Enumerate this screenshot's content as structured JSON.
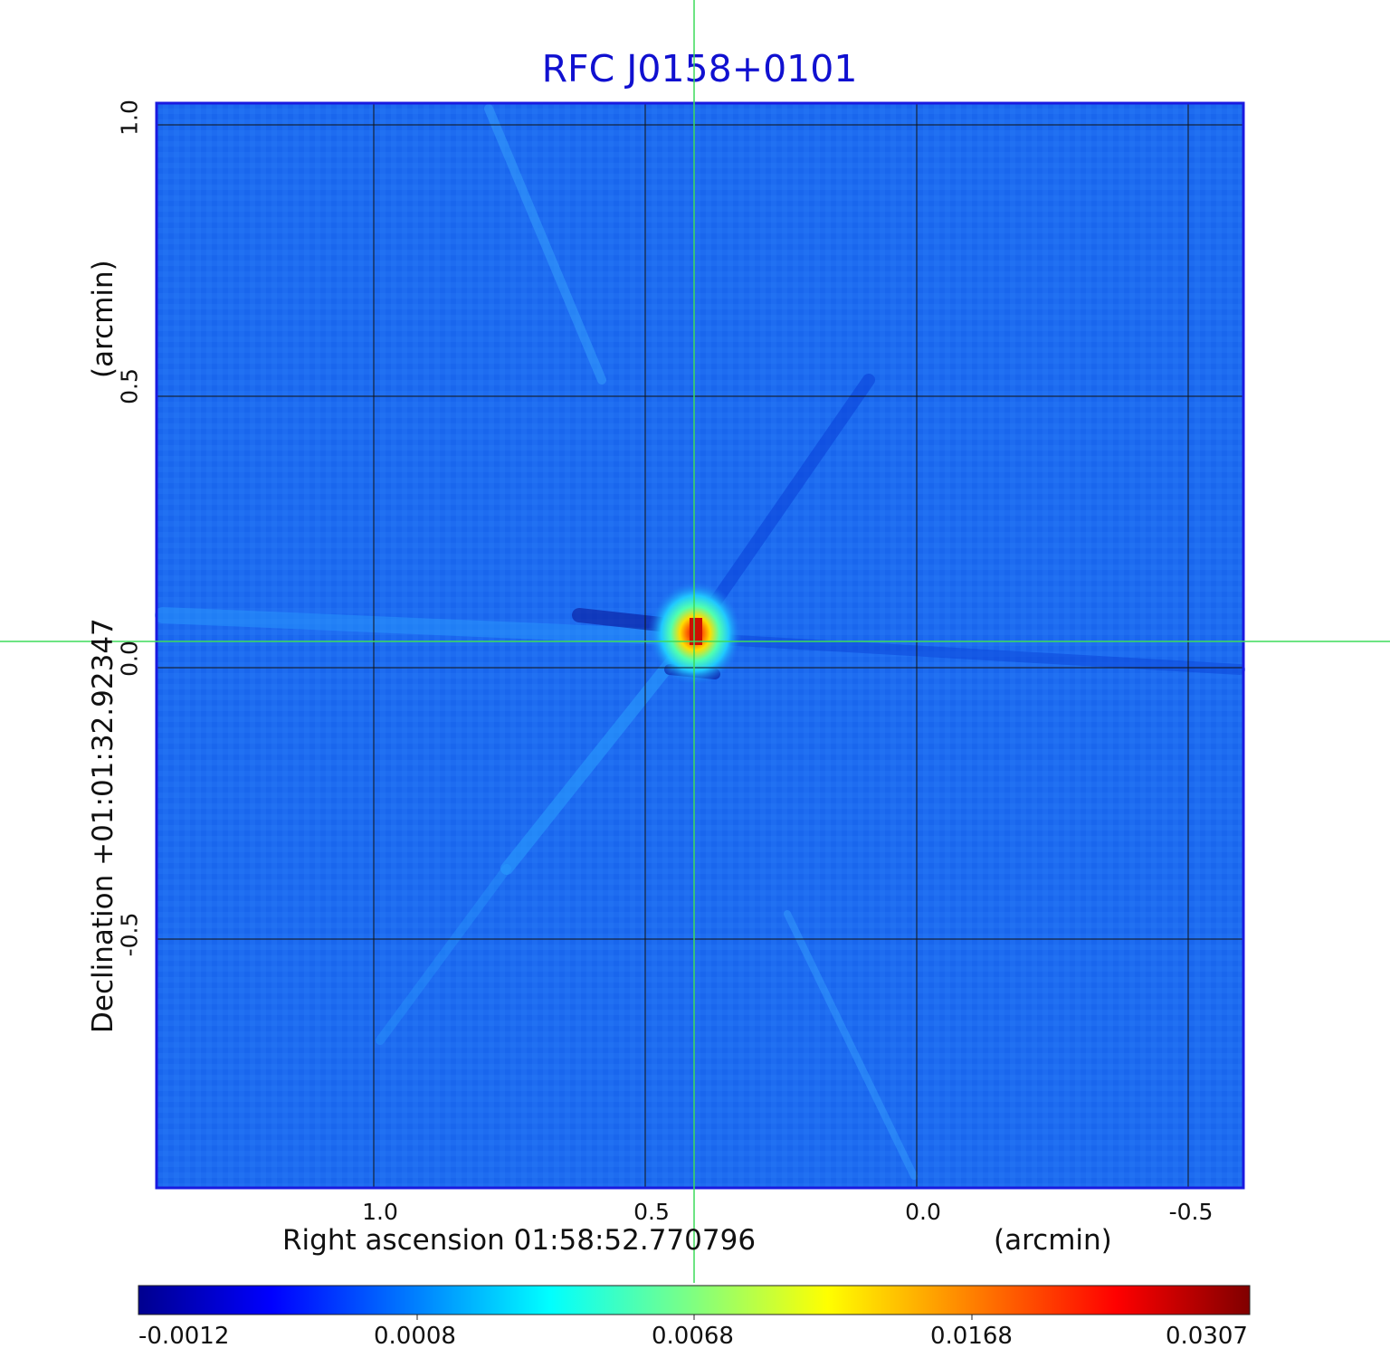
{
  "title": "RFC J0158+0101",
  "x_axis": {
    "label_left": "Right ascension  01:58:52.770796",
    "label_right": "(arcmin)",
    "ticks": [
      "1.0",
      "0.5",
      "0.0",
      "-0.5"
    ]
  },
  "y_axis": {
    "label_left": "Declination  +01:01:32.92347",
    "label_right": "(arcmin)",
    "ticks": [
      "1.0",
      "0.5",
      "0.0",
      "-0.5"
    ]
  },
  "colorbar": {
    "ticks": [
      "-0.0012",
      "0.0008",
      "0.0068",
      "0.0168",
      "0.0307"
    ],
    "colors": [
      "#00008f",
      "#0000ff",
      "#0080ff",
      "#00ffff",
      "#80ff80",
      "#ffff00",
      "#ff8000",
      "#ff0000",
      "#800000"
    ]
  },
  "colors": {
    "background": "#1e6cf0",
    "frame": "#1a1ae0",
    "crosshair": "#3ddc5a",
    "title": "#1010d0",
    "grid": "#111111"
  }
}
